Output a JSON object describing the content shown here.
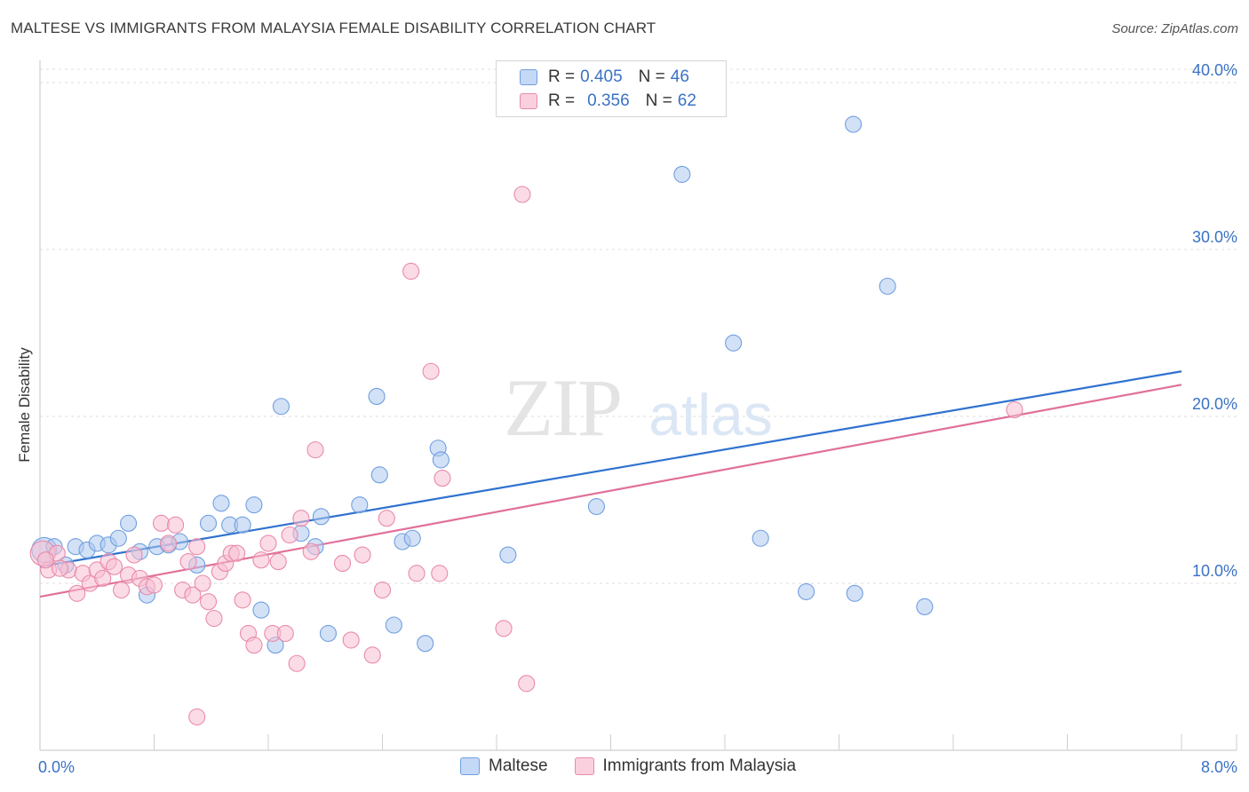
{
  "title": "MALTESE VS IMMIGRANTS FROM MALAYSIA FEMALE DISABILITY CORRELATION CHART",
  "source": "Source: ZipAtlas.com",
  "watermark": {
    "zip": "ZIP",
    "atlas": "atlas"
  },
  "legend": {
    "r_label": "R =",
    "n_label": "N =",
    "series": [
      {
        "name": "Maltese",
        "r": "0.405",
        "n": "46",
        "fill": "#aec8ef",
        "stroke": "#6f9fe0"
      },
      {
        "name": "Immigrants from Malaysia",
        "r": "0.356",
        "n": "62",
        "fill": "#f7bfd1",
        "stroke": "#e98aaa"
      }
    ]
  },
  "chart_data": {
    "type": "scatter",
    "title": "MALTESE VS IMMIGRANTS FROM MALAYSIA FEMALE DISABILITY CORRELATION CHART",
    "xlabel": "",
    "ylabel": "Female Disability",
    "xlim": [
      0,
      8
    ],
    "ylim": [
      0,
      40.8
    ],
    "x_tick_labels": [
      "0.0%",
      "8.0%"
    ],
    "y_ticks": [
      10,
      20,
      30,
      40
    ],
    "y_tick_labels": [
      "10.0%",
      "20.0%",
      "30.0%",
      "40.0%"
    ],
    "grid": true,
    "series": [
      {
        "name": "Maltese",
        "color": "#6f9fe0",
        "line_color": "#2f72cf",
        "trend": {
          "x": [
            0,
            8
          ],
          "y": [
            11.0,
            22.7
          ]
        },
        "points": [
          [
            0.03,
            12.0
          ],
          [
            0.1,
            12.2
          ],
          [
            0.18,
            11.1
          ],
          [
            0.25,
            12.2
          ],
          [
            0.33,
            12.0
          ],
          [
            0.4,
            12.4
          ],
          [
            0.48,
            12.3
          ],
          [
            0.55,
            12.7
          ],
          [
            0.62,
            13.6
          ],
          [
            0.7,
            11.9
          ],
          [
            0.75,
            9.3
          ],
          [
            0.82,
            12.2
          ],
          [
            0.9,
            12.3
          ],
          [
            0.98,
            12.5
          ],
          [
            1.1,
            11.1
          ],
          [
            1.18,
            13.6
          ],
          [
            1.27,
            14.8
          ],
          [
            1.33,
            13.5
          ],
          [
            1.42,
            13.5
          ],
          [
            1.5,
            14.7
          ],
          [
            1.55,
            8.4
          ],
          [
            1.65,
            6.3
          ],
          [
            1.69,
            20.6
          ],
          [
            1.83,
            13.0
          ],
          [
            1.93,
            12.2
          ],
          [
            1.97,
            14.0
          ],
          [
            2.02,
            7.0
          ],
          [
            2.24,
            14.7
          ],
          [
            2.36,
            21.2
          ],
          [
            2.38,
            16.5
          ],
          [
            2.48,
            7.5
          ],
          [
            2.54,
            12.5
          ],
          [
            2.61,
            12.7
          ],
          [
            2.7,
            6.4
          ],
          [
            2.79,
            18.1
          ],
          [
            2.81,
            17.4
          ],
          [
            3.28,
            11.7
          ],
          [
            3.9,
            14.6
          ],
          [
            4.5,
            34.5
          ],
          [
            4.86,
            24.4
          ],
          [
            5.05,
            12.7
          ],
          [
            5.37,
            9.5
          ],
          [
            5.7,
            37.5
          ],
          [
            5.71,
            9.4
          ],
          [
            5.94,
            27.8
          ],
          [
            6.2,
            8.6
          ]
        ]
      },
      {
        "name": "Immigrants from Malaysia",
        "color": "#e98aaa",
        "line_color": "#e0709a",
        "trend": {
          "x": [
            0,
            8
          ],
          "y": [
            9.2,
            21.9
          ]
        },
        "points": [
          [
            0.02,
            11.8
          ],
          [
            0.06,
            10.8
          ],
          [
            0.12,
            11.8
          ],
          [
            0.2,
            10.8
          ],
          [
            0.26,
            9.4
          ],
          [
            0.3,
            10.6
          ],
          [
            0.35,
            10.0
          ],
          [
            0.4,
            10.8
          ],
          [
            0.44,
            10.3
          ],
          [
            0.48,
            11.3
          ],
          [
            0.52,
            11.0
          ],
          [
            0.57,
            9.6
          ],
          [
            0.62,
            10.5
          ],
          [
            0.66,
            11.7
          ],
          [
            0.7,
            10.3
          ],
          [
            0.75,
            9.8
          ],
          [
            0.8,
            9.9
          ],
          [
            0.85,
            13.6
          ],
          [
            0.9,
            12.4
          ],
          [
            0.95,
            13.5
          ],
          [
            1.0,
            9.6
          ],
          [
            1.04,
            11.3
          ],
          [
            1.07,
            9.3
          ],
          [
            1.1,
            12.2
          ],
          [
            1.14,
            10.0
          ],
          [
            1.18,
            8.9
          ],
          [
            1.22,
            7.9
          ],
          [
            1.26,
            10.7
          ],
          [
            1.3,
            11.2
          ],
          [
            1.34,
            11.8
          ],
          [
            1.38,
            11.8
          ],
          [
            1.42,
            9.0
          ],
          [
            1.46,
            7.0
          ],
          [
            1.5,
            6.3
          ],
          [
            1.55,
            11.4
          ],
          [
            1.6,
            12.4
          ],
          [
            1.63,
            7.0
          ],
          [
            1.67,
            11.3
          ],
          [
            1.72,
            7.0
          ],
          [
            1.75,
            12.9
          ],
          [
            1.8,
            5.2
          ],
          [
            1.83,
            13.9
          ],
          [
            1.9,
            11.9
          ],
          [
            1.93,
            18.0
          ],
          [
            2.12,
            11.2
          ],
          [
            2.18,
            6.6
          ],
          [
            2.26,
            11.7
          ],
          [
            2.33,
            5.7
          ],
          [
            2.4,
            9.6
          ],
          [
            2.43,
            13.9
          ],
          [
            1.1,
            2.0
          ],
          [
            2.6,
            28.7
          ],
          [
            2.64,
            10.6
          ],
          [
            2.74,
            22.7
          ],
          [
            2.8,
            10.6
          ],
          [
            2.82,
            16.3
          ],
          [
            3.25,
            7.3
          ],
          [
            3.38,
            33.3
          ],
          [
            3.41,
            4.0
          ],
          [
            6.83,
            20.4
          ],
          [
            0.04,
            11.4
          ],
          [
            0.14,
            10.9
          ]
        ]
      }
    ]
  }
}
